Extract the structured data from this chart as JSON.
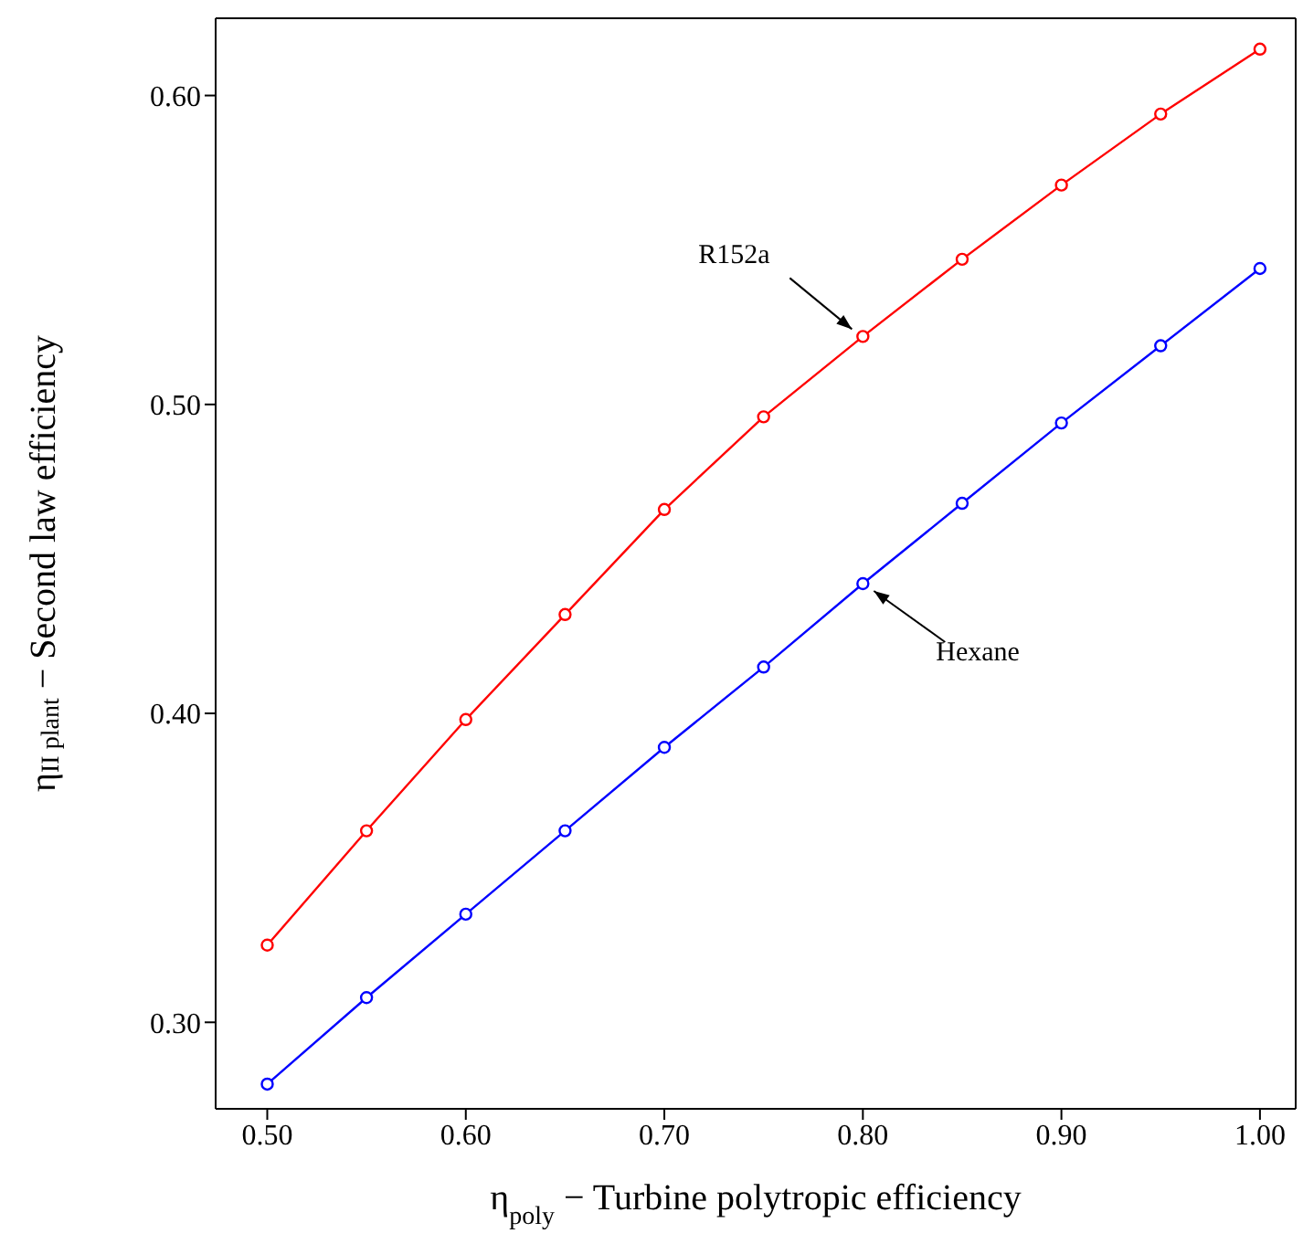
{
  "chart_data": {
    "type": "line",
    "xlabel": "η$_{poly}$ − Turbine polytropic efficiency",
    "ylabel": "η$_{II plant}$ − Second law efficiency",
    "x": [
      0.5,
      0.55,
      0.6,
      0.65,
      0.7,
      0.75,
      0.8,
      0.85,
      0.9,
      0.95,
      1.0
    ],
    "series": [
      {
        "name": "R152a",
        "color": "#ff0000",
        "values": [
          0.325,
          0.362,
          0.398,
          0.432,
          0.466,
          0.496,
          0.522,
          0.547,
          0.571,
          0.594,
          0.615
        ]
      },
      {
        "name": "Hexane",
        "color": "#0000ff",
        "values": [
          0.28,
          0.308,
          0.335,
          0.362,
          0.389,
          0.415,
          0.442,
          0.468,
          0.494,
          0.519,
          0.544
        ]
      }
    ],
    "xlim": [
      0.474,
      1.018
    ],
    "ylim": [
      0.272,
      0.625
    ],
    "xticks": [
      {
        "value": 0.5,
        "label": "0.50"
      },
      {
        "value": 0.6,
        "label": "0.60"
      },
      {
        "value": 0.7,
        "label": "0.70"
      },
      {
        "value": 0.8,
        "label": "0.80"
      },
      {
        "value": 0.9,
        "label": "0.90"
      },
      {
        "value": 1.0,
        "label": "1.00"
      }
    ],
    "yticks": [
      {
        "value": 0.3,
        "label": "0.30"
      },
      {
        "value": 0.4,
        "label": "0.40"
      },
      {
        "value": 0.5,
        "label": "0.50"
      },
      {
        "value": 0.6,
        "label": "0.60"
      }
    ],
    "marker": "circle",
    "line_style": "solid"
  }
}
